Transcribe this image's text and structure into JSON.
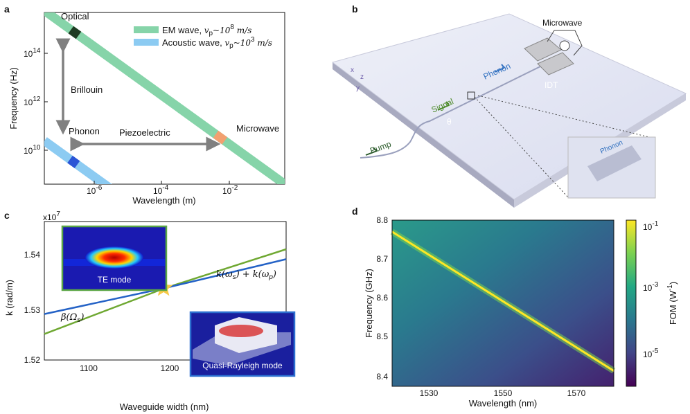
{
  "panels": {
    "a": {
      "letter": "a",
      "xlabel": "Wavelength (m)",
      "ylabel": "Frequency (Hz)",
      "xticks": [
        "10",
        "10",
        "10"
      ],
      "xtick_exp": [
        "-6",
        "-4",
        "-2"
      ],
      "yticks": [
        "10",
        "10",
        "10"
      ],
      "ytick_exp": [
        "14",
        "12",
        "10"
      ],
      "legend": {
        "em": "EM wave, ",
        "em_eq": "v",
        "em_sub": "p",
        "em_rest": "~10",
        "em_exp": "8",
        "em_unit": " m/s",
        "ac": "Acoustic wave, ",
        "ac_eq": "v",
        "ac_sub": "p",
        "ac_rest": "~10",
        "ac_exp": "3",
        "ac_unit": " m/s"
      },
      "annotations": {
        "optical": "Optical",
        "brillouin": "Brillouin",
        "phonon": "Phonon",
        "piezo": "Piezoelectric",
        "microwave": "Microwave"
      },
      "colors": {
        "em": "#86d4a9",
        "acoustic": "#8ccbf2",
        "optical_mark": "#1d3b22",
        "microwave_mark": "#f2a070",
        "phonon_mark": "#2a55d6",
        "arrow": "#808080"
      }
    },
    "b": {
      "letter": "b",
      "labels": {
        "microwave": "Microwave",
        "phonon": "Phonon",
        "idt": "IDT",
        "signal": "Signal",
        "pump": "Pump",
        "theta": "θ",
        "x": "x",
        "y": "y",
        "z": "z",
        "inset_phonon": "Phonon"
      }
    },
    "c": {
      "letter": "c",
      "xlabel": "Waveguide width (nm)",
      "ylabel": "k (rad/m)",
      "scale": "x10",
      "scale_exp": "7",
      "xticks": [
        "1100",
        "1200",
        "1300"
      ],
      "yticks": [
        "1.54",
        "1.53",
        "1.52"
      ],
      "label_k": "k(ω",
      "label_k_s": "s",
      "label_k_mid": ") + k(ω",
      "label_k_p": "p",
      "label_k_end": ")",
      "label_beta": "β(Ω",
      "label_beta_s": "s",
      "label_beta_end": ")",
      "te": "TE mode",
      "qr": "Quasi-Rayleigh mode",
      "colors": {
        "green": "#6fa832",
        "blue": "#2462c6",
        "star": "#f7c947"
      }
    },
    "d": {
      "letter": "d",
      "xlabel": "Wavelength (nm)",
      "ylabel": "Frequency (GHz)",
      "xticks": [
        "1530",
        "1550",
        "1570"
      ],
      "yticks": [
        "8.8",
        "8.7",
        "8.6",
        "8.5",
        "8.4"
      ],
      "cbar_label": "FOM (W",
      "cbar_label_exp": "-1",
      "cbar_label_end": ")",
      "cbar_ticks": [
        "10",
        "10",
        "10"
      ],
      "cbar_exp": [
        "-1",
        "-3",
        "-5"
      ]
    }
  },
  "chart_data": [
    {
      "type": "line",
      "panel": "a",
      "xscale": "log",
      "yscale": "log",
      "xlim": [
        5e-08,
        1
      ],
      "ylim": [
        300000000.0,
        5000000000000000.0
      ],
      "series": [
        {
          "name": "EM wave",
          "x": [
            5e-08,
            1
          ],
          "y": [
            6000000000000000.0,
            300000000.0
          ]
        },
        {
          "name": "Acoustic wave",
          "x": [
            5e-08,
            1e-05
          ],
          "y": [
            20000000000.0,
            100000000.0
          ]
        }
      ]
    },
    {
      "type": "line",
      "panel": "c",
      "xlim": [
        1050,
        1350
      ],
      "ylim": [
        1.52,
        1.545
      ],
      "series": [
        {
          "name": "k(ωs) + k(ωp)",
          "x": [
            1050,
            1200,
            1350
          ],
          "y": [
            1.5247,
            1.533,
            1.54
          ]
        },
        {
          "name": "β(Ωs)",
          "x": [
            1050,
            1200,
            1350
          ],
          "y": [
            1.5283,
            1.533,
            1.5382
          ]
        }
      ],
      "intersection": {
        "x": 1198,
        "y": 1.533
      }
    },
    {
      "type": "heatmap",
      "panel": "d",
      "xlim": [
        1520,
        1580
      ],
      "ylim": [
        8.37,
        8.8
      ],
      "ridge": {
        "x": [
          1520,
          1580
        ],
        "y": [
          8.77,
          8.41
        ]
      },
      "colorbar": {
        "scale": "log",
        "range": [
          1e-06,
          0.1
        ]
      }
    }
  ]
}
